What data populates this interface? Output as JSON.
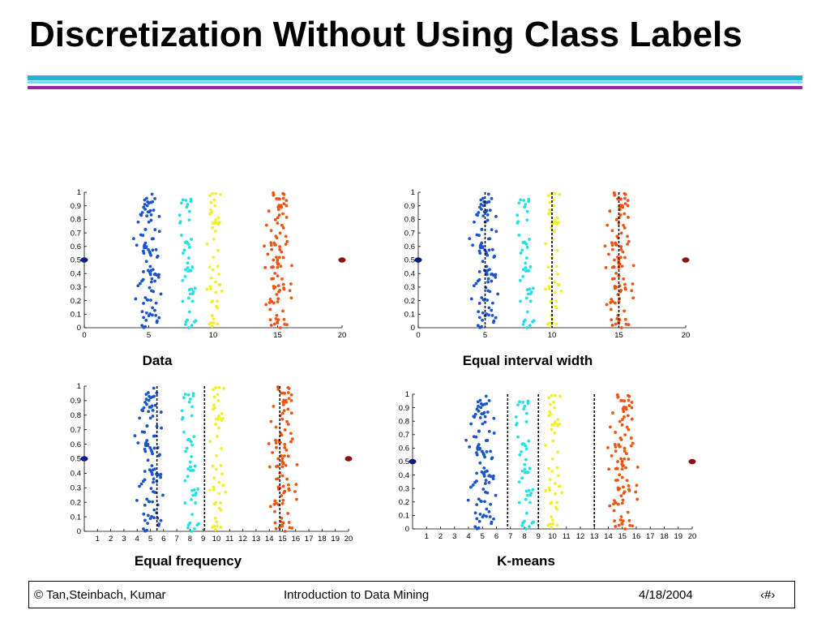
{
  "slide": {
    "title": "Discretization Without Using Class Labels",
    "footer": {
      "left": "© Tan,Steinbach, Kumar",
      "center": "Introduction to Data Mining",
      "date": "4/18/2004",
      "page": "‹#›"
    }
  },
  "colors": {
    "cluster_1": "#1a55cc",
    "cluster_2": "#22e0e8",
    "cluster_3": "#f0f030",
    "cluster_4": "#ee5511",
    "outlier_left": "#0a1a80",
    "outlier_right": "#8a1010",
    "split_line": "#000000"
  },
  "chart_data": [
    {
      "type": "scatter",
      "title": "Data",
      "xlim": [
        0,
        20
      ],
      "ylim": [
        0,
        1
      ],
      "xticks": [
        0,
        5,
        10,
        15,
        20
      ],
      "yticks": [
        "0",
        "0.1",
        "0.2",
        "0.3",
        "0.4",
        "0.5",
        "0.6",
        "0.7",
        "0.8",
        "0.9",
        "1"
      ],
      "clusters": [
        {
          "center": 5,
          "spread": 1.2,
          "count": 100
        },
        {
          "center": 8,
          "spread": 0.7,
          "count": 50
        },
        {
          "center": 10,
          "spread": 0.7,
          "count": 50
        },
        {
          "center": 15,
          "spread": 1.2,
          "count": 100
        }
      ],
      "outliers": [
        {
          "x": 0,
          "y": 0.5
        },
        {
          "x": 20,
          "y": 0.5
        }
      ],
      "split_lines": []
    },
    {
      "type": "scatter",
      "title": "Equal interval width",
      "xlim": [
        0,
        20
      ],
      "ylim": [
        0,
        1
      ],
      "xticks": [
        0,
        5,
        10,
        15,
        20
      ],
      "yticks": [
        "0",
        "0.1",
        "0.2",
        "0.3",
        "0.4",
        "0.5",
        "0.6",
        "0.7",
        "0.8",
        "0.9",
        "1"
      ],
      "clusters": [
        {
          "center": 5,
          "spread": 1.2,
          "count": 100
        },
        {
          "center": 8,
          "spread": 0.7,
          "count": 50
        },
        {
          "center": 10,
          "spread": 0.7,
          "count": 50
        },
        {
          "center": 15,
          "spread": 1.2,
          "count": 100
        }
      ],
      "outliers": [
        {
          "x": 0,
          "y": 0.5
        },
        {
          "x": 20,
          "y": 0.5
        }
      ],
      "split_lines": [
        5,
        10,
        15
      ]
    },
    {
      "type": "scatter",
      "title": "Equal frequency",
      "xlim": [
        0,
        20
      ],
      "ylim": [
        0,
        1
      ],
      "xticks": [
        1,
        2,
        3,
        4,
        5,
        6,
        7,
        8,
        9,
        10,
        11,
        12,
        13,
        14,
        15,
        16,
        17,
        18,
        19,
        20
      ],
      "yticks": [
        "0",
        "0.1",
        "0.2",
        "0.3",
        "0.4",
        "0.5",
        "0.6",
        "0.7",
        "0.8",
        "0.9",
        "1"
      ],
      "clusters": [
        {
          "center": 5,
          "spread": 1.2,
          "count": 100
        },
        {
          "center": 8,
          "spread": 0.7,
          "count": 50
        },
        {
          "center": 10,
          "spread": 0.7,
          "count": 50
        },
        {
          "center": 15,
          "spread": 1.2,
          "count": 100
        }
      ],
      "outliers": [
        {
          "x": 0,
          "y": 0.5
        },
        {
          "x": 20,
          "y": 0.5
        }
      ],
      "split_lines": [
        5.5,
        9.1,
        14.8
      ]
    },
    {
      "type": "scatter",
      "title": "K-means",
      "xlim": [
        0,
        20
      ],
      "ylim": [
        0,
        1
      ],
      "xticks": [
        1,
        2,
        3,
        4,
        5,
        6,
        7,
        8,
        9,
        10,
        11,
        12,
        13,
        14,
        15,
        16,
        17,
        18,
        19,
        20
      ],
      "yticks": [
        "0",
        "0.1",
        "0.2",
        "0.3",
        "0.4",
        "0.5",
        "0.6",
        "0.7",
        "0.8",
        "0.9",
        "1"
      ],
      "clusters": [
        {
          "center": 5,
          "spread": 1.2,
          "count": 100
        },
        {
          "center": 8,
          "spread": 0.7,
          "count": 50
        },
        {
          "center": 10,
          "spread": 0.7,
          "count": 50
        },
        {
          "center": 15,
          "spread": 1.2,
          "count": 100
        }
      ],
      "outliers": [
        {
          "x": 0,
          "y": 0.5
        },
        {
          "x": 20,
          "y": 0.5
        }
      ],
      "split_lines": [
        6.8,
        9.0,
        13.0
      ]
    }
  ]
}
